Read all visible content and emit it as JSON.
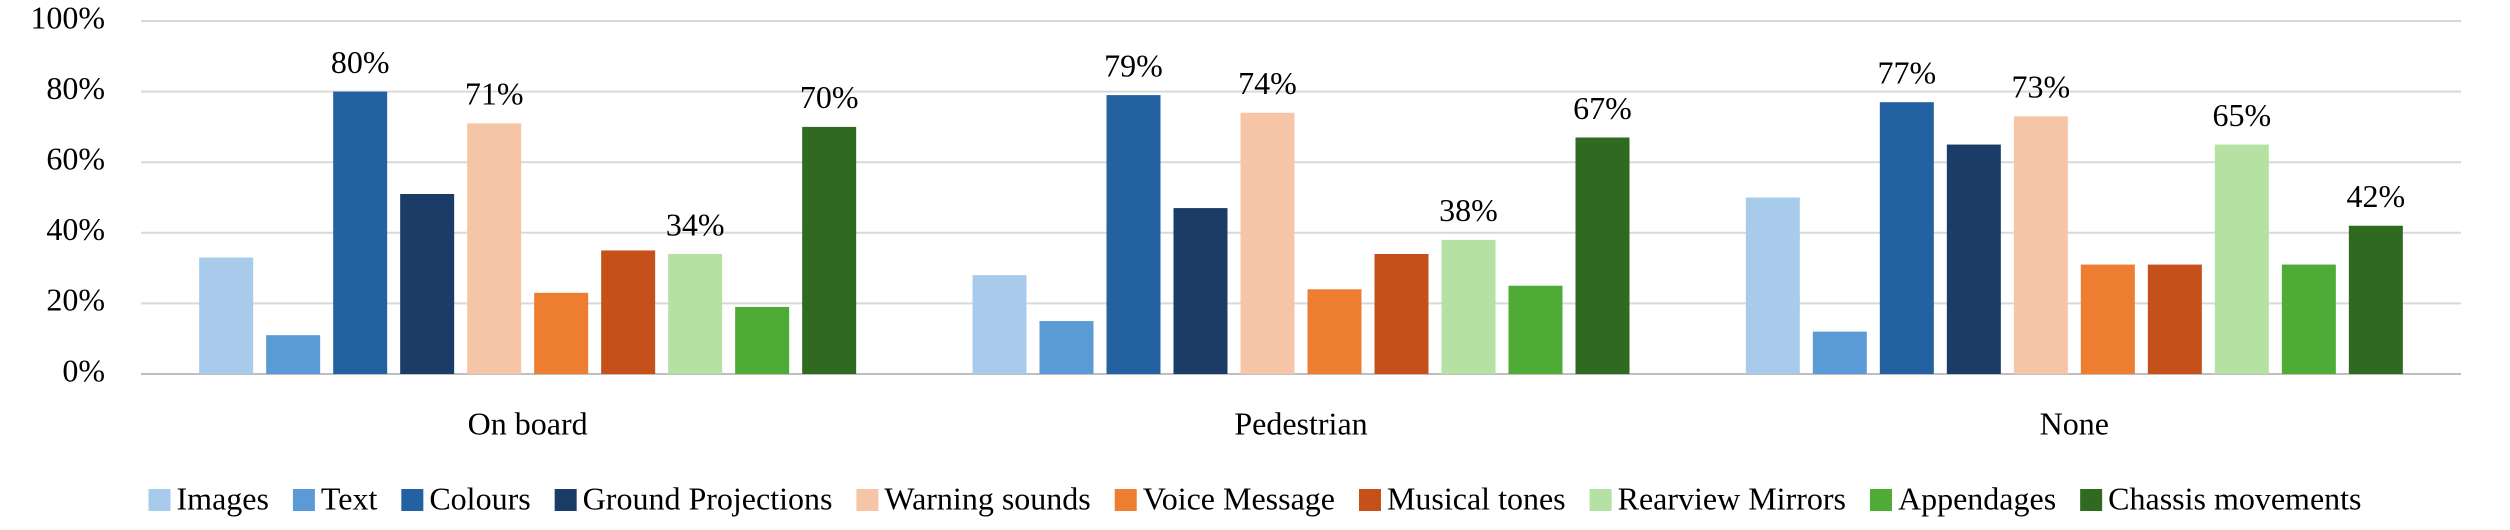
{
  "chart_data": {
    "type": "bar",
    "categories": [
      "On board",
      "Pedestrian",
      "None"
    ],
    "series": [
      {
        "name": "Images",
        "color": "#a9cbeb",
        "values": [
          33,
          28,
          50
        ]
      },
      {
        "name": "Text",
        "color": "#5b9bd5",
        "values": [
          11,
          15,
          12
        ]
      },
      {
        "name": "Colours",
        "color": "#2461a0",
        "values": [
          80,
          79,
          77
        ],
        "value_labels": [
          "80%",
          "79%",
          "77%"
        ]
      },
      {
        "name": "Ground Projections",
        "color": "#1a3c66",
        "values": [
          51,
          47,
          65
        ]
      },
      {
        "name": "Warning sounds",
        "color": "#f6c5a8",
        "values": [
          71,
          74,
          73
        ],
        "value_labels": [
          "71%",
          "74%",
          "73%"
        ]
      },
      {
        "name": "Voice Message",
        "color": "#ed7d31",
        "values": [
          23,
          24,
          31
        ]
      },
      {
        "name": "Musical tones",
        "color": "#c5501a",
        "values": [
          35,
          34,
          31
        ]
      },
      {
        "name": "Rearview Mirrors",
        "color": "#b5e2a2",
        "values": [
          34,
          38,
          65
        ],
        "value_labels": [
          "34%",
          "38%",
          "65%"
        ]
      },
      {
        "name": "Appendages",
        "color": "#4eab35",
        "values": [
          19,
          25,
          31
        ]
      },
      {
        "name": "Chassis movements",
        "color": "#2f6a20",
        "values": [
          70,
          67,
          42
        ],
        "value_labels": [
          "70%",
          "67%",
          "42%"
        ]
      }
    ],
    "ylim": [
      0,
      100
    ],
    "yticks": [
      {
        "value": 0,
        "label": "0%"
      },
      {
        "value": 20,
        "label": "20%"
      },
      {
        "value": 40,
        "label": "40%"
      },
      {
        "value": 60,
        "label": "60%"
      },
      {
        "value": 80,
        "label": "80%"
      },
      {
        "value": 100,
        "label": "100%"
      }
    ],
    "grid": true
  }
}
